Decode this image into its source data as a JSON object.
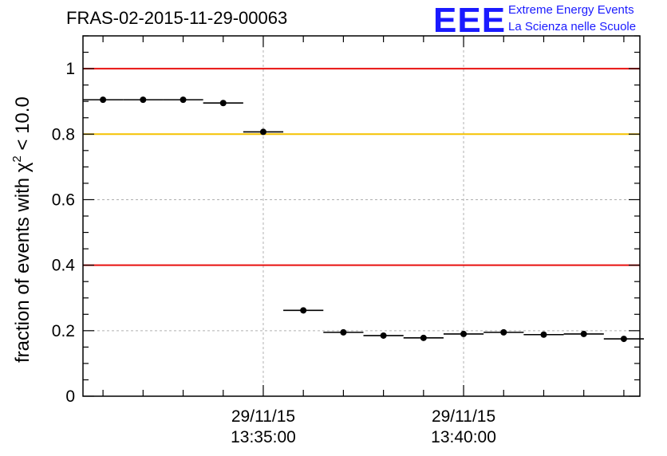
{
  "header": {
    "run_title": "FRAS-02-2015-11-29-00063",
    "logo_text": "EEE",
    "logo_line1": "Extreme Energy Events",
    "logo_line2": "La Scienza nelle Scuole"
  },
  "colors": {
    "threshold_red": "#e8100f",
    "threshold_yellow": "#f5c200",
    "logo_blue": "#1a1aff",
    "grid": "#b0b0b0"
  },
  "chart_data": {
    "type": "scatter",
    "title": "FRAS-02-2015-11-29-00063",
    "ylabel_prefix": "fraction of events with χ",
    "ylabel_sup": "2",
    "ylabel_suffix": " < 10.0",
    "ylim": [
      0,
      1.1
    ],
    "xlim_minutes": [
      0,
      13.9
    ],
    "x_unit": "minutes",
    "yticks": [
      "0",
      "0.2",
      "0.4",
      "0.6",
      "0.8",
      "1"
    ],
    "xticks": [
      {
        "minute": 4.5,
        "date": "29/11/15",
        "time": "13:35:00"
      },
      {
        "minute": 9.5,
        "date": "29/11/15",
        "time": "13:40:00"
      }
    ],
    "grid": true,
    "hlines": [
      {
        "y": 1.0,
        "color": "red"
      },
      {
        "y": 0.8,
        "color": "yellow"
      },
      {
        "y": 0.4,
        "color": "red"
      }
    ],
    "bin_width_minutes": 1.0,
    "points": [
      {
        "x": 0.5,
        "y": 0.905
      },
      {
        "x": 1.5,
        "y": 0.905
      },
      {
        "x": 2.5,
        "y": 0.905
      },
      {
        "x": 3.5,
        "y": 0.895
      },
      {
        "x": 4.5,
        "y": 0.807
      },
      {
        "x": 5.5,
        "y": 0.262
      },
      {
        "x": 6.5,
        "y": 0.195
      },
      {
        "x": 7.5,
        "y": 0.185
      },
      {
        "x": 8.5,
        "y": 0.178
      },
      {
        "x": 9.5,
        "y": 0.19
      },
      {
        "x": 10.5,
        "y": 0.195
      },
      {
        "x": 11.5,
        "y": 0.188
      },
      {
        "x": 12.5,
        "y": 0.19
      },
      {
        "x": 13.5,
        "y": 0.175
      }
    ]
  }
}
